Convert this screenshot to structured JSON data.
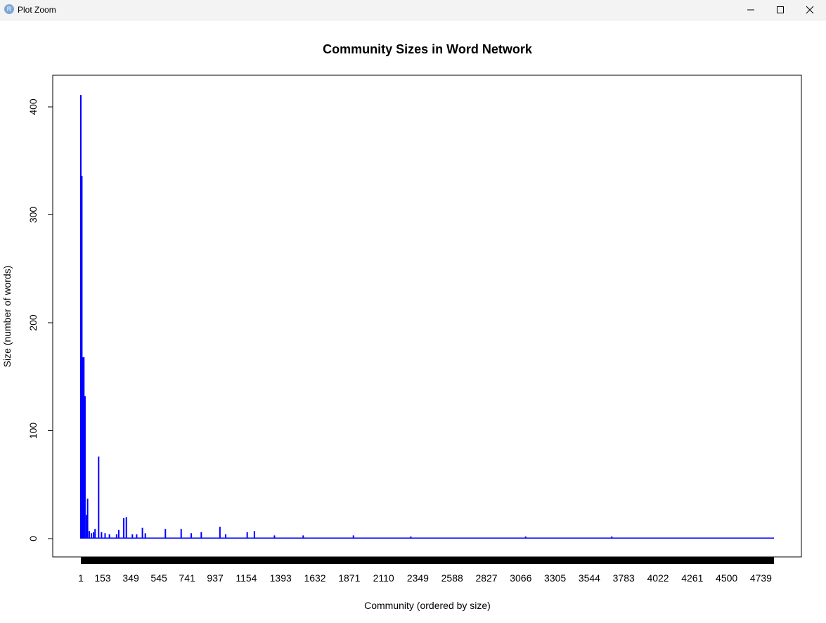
{
  "window": {
    "title": "Plot Zoom",
    "app_icon_letter": "R",
    "controls": [
      "minimize",
      "maximize",
      "close"
    ]
  },
  "chart_data": {
    "type": "bar",
    "title": "Community Sizes in Word Network",
    "xlabel": "Community (ordered by size)",
    "ylabel": "Size (number of words)",
    "ylim": [
      0,
      420
    ],
    "y_ticks": [
      0,
      100,
      200,
      300,
      400
    ],
    "x_tick_labels": [
      "1",
      "153",
      "349",
      "545",
      "741",
      "937",
      "1154",
      "1393",
      "1632",
      "1871",
      "2110",
      "2349",
      "2588",
      "2827",
      "3066",
      "3305",
      "3544",
      "3783",
      "4022",
      "4261",
      "4500",
      "4739"
    ],
    "x_tick_positions": [
      1,
      153,
      349,
      545,
      741,
      937,
      1154,
      1393,
      1632,
      1871,
      2110,
      2349,
      2588,
      2827,
      3066,
      3305,
      3544,
      3783,
      4022,
      4261,
      4500,
      4739
    ],
    "n_communities": 4830,
    "bar_color": "#0000ff",
    "grid": false,
    "legend": "none",
    "notable_bars": [
      {
        "x": 1,
        "value": 411
      },
      {
        "x": 8,
        "value": 336
      },
      {
        "x": 15,
        "value": 168
      },
      {
        "x": 22,
        "value": 168
      },
      {
        "x": 30,
        "value": 132
      },
      {
        "x": 40,
        "value": 22
      },
      {
        "x": 48,
        "value": 37
      },
      {
        "x": 60,
        "value": 7
      },
      {
        "x": 75,
        "value": 5
      },
      {
        "x": 90,
        "value": 6
      },
      {
        "x": 100,
        "value": 9
      },
      {
        "x": 125,
        "value": 76
      },
      {
        "x": 145,
        "value": 6
      },
      {
        "x": 170,
        "value": 5
      },
      {
        "x": 200,
        "value": 4
      },
      {
        "x": 250,
        "value": 4
      },
      {
        "x": 265,
        "value": 8
      },
      {
        "x": 300,
        "value": 19
      },
      {
        "x": 318,
        "value": 20
      },
      {
        "x": 360,
        "value": 4
      },
      {
        "x": 390,
        "value": 4
      },
      {
        "x": 430,
        "value": 10
      },
      {
        "x": 450,
        "value": 5
      },
      {
        "x": 590,
        "value": 9
      },
      {
        "x": 700,
        "value": 9
      },
      {
        "x": 770,
        "value": 5
      },
      {
        "x": 840,
        "value": 6
      },
      {
        "x": 970,
        "value": 11
      },
      {
        "x": 1010,
        "value": 4
      },
      {
        "x": 1160,
        "value": 6
      },
      {
        "x": 1210,
        "value": 7
      },
      {
        "x": 1350,
        "value": 3
      },
      {
        "x": 1550,
        "value": 3
      },
      {
        "x": 1900,
        "value": 3
      },
      {
        "x": 2300,
        "value": 2
      },
      {
        "x": 3100,
        "value": 2
      },
      {
        "x": 3700,
        "value": 2
      }
    ],
    "tail_level": 1
  }
}
